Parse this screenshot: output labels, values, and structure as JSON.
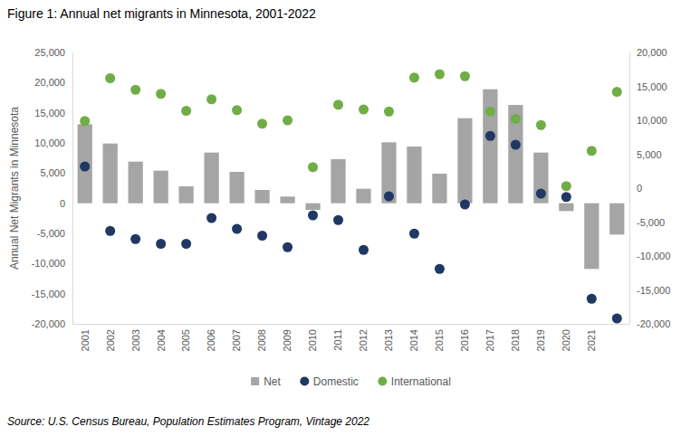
{
  "chart_data": {
    "type": "bar",
    "title": "Figure 1: Annual net migrants in Minnesota, 2001-2022",
    "ylabel": "Annual Net Migrants in Minnesota",
    "source": "Source: U.S. Census Bureau, Population Estimates Program, Vintage 2022",
    "categories": [
      "2001",
      "2002",
      "2003",
      "2004",
      "2005",
      "2006",
      "2007",
      "2008",
      "2009",
      "2010",
      "2011",
      "2012",
      "2013",
      "2014",
      "2015",
      "2016",
      "2017",
      "2018",
      "2019",
      "2020",
      "2021",
      null
    ],
    "series": [
      {
        "name": "Net",
        "type": "bar",
        "color": "#a5a5a5",
        "values": [
          13100,
          9900,
          6900,
          5400,
          2800,
          8400,
          5200,
          2200,
          1100,
          -1100,
          7300,
          2400,
          10100,
          9400,
          4900,
          14100,
          18900,
          16300,
          8400,
          -1300,
          -10900,
          -5200
        ]
      },
      {
        "name": "Domestic",
        "type": "scatter",
        "marker": "circle",
        "color": "#1f3864",
        "axis": "y2",
        "values": [
          3200,
          -6300,
          -7500,
          -8200,
          -8200,
          -4400,
          -6000,
          -7000,
          -8700,
          -4000,
          -4700,
          -9100,
          -1200,
          -6700,
          -11900,
          -2400,
          7700,
          6400,
          -800,
          -1300,
          -16300,
          -19200
        ]
      },
      {
        "name": "International",
        "type": "scatter",
        "marker": "circle",
        "color": "#70ad47",
        "axis": "y2",
        "values": [
          9900,
          16200,
          14500,
          13900,
          11400,
          13100,
          11500,
          9500,
          10000,
          3100,
          12300,
          11600,
          11300,
          16300,
          16800,
          16500,
          11300,
          10200,
          9300,
          300,
          5500,
          14200
        ]
      }
    ],
    "ylim": [
      -20000,
      25000
    ],
    "yticks": [
      {
        "value": -20000,
        "label": "-20,000"
      },
      {
        "value": -15000,
        "label": "-15,000"
      },
      {
        "value": -10000,
        "label": "-10,000"
      },
      {
        "value": -5000,
        "label": "-5,000"
      },
      0,
      {
        "value": 5000,
        "label": "5,000"
      },
      {
        "value": 10000,
        "label": "10,000"
      },
      {
        "value": 15000,
        "label": "15,000"
      },
      {
        "value": 20000,
        "label": "20,000"
      },
      {
        "value": 25000,
        "label": "25,000"
      }
    ],
    "y2lim": [
      -20000,
      20000
    ],
    "y2ticks": [
      {
        "value": -20000,
        "label": "-20,000"
      },
      {
        "value": -15000,
        "label": "-15,000"
      },
      {
        "value": -10000,
        "label": "-10,000"
      },
      {
        "value": -5000,
        "label": "-5,000"
      },
      0,
      {
        "value": 5000,
        "label": "5,000"
      },
      {
        "value": 10000,
        "label": "10,000"
      },
      {
        "value": 15000,
        "label": "15,000"
      },
      {
        "value": 20000,
        "label": "20,000"
      }
    ],
    "grid": false,
    "legend": "bottom"
  }
}
